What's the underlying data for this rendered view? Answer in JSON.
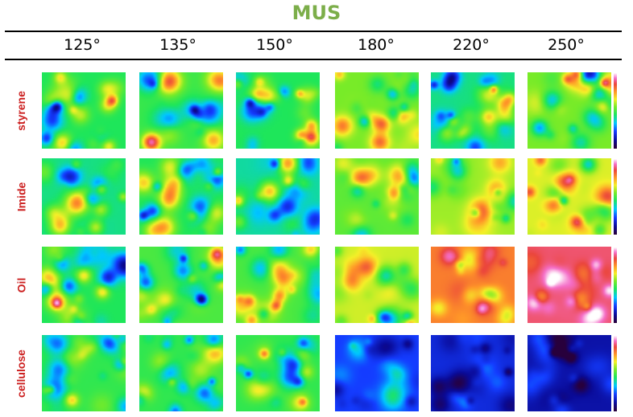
{
  "title": "MUS",
  "colors": {
    "title": "#7cae4a",
    "row_label": "#cc1f1f"
  },
  "columns": [
    "125°",
    "135°",
    "150°",
    "180°",
    "220°",
    "250°"
  ],
  "rows": [
    {
      "label": "styrene",
      "levels": [
        0.45,
        0.48,
        0.45,
        0.55,
        0.42,
        0.55
      ]
    },
    {
      "label": "Imide",
      "levels": [
        0.42,
        0.45,
        0.4,
        0.52,
        0.58,
        0.63
      ]
    },
    {
      "label": "Oil",
      "levels": [
        0.45,
        0.5,
        0.5,
        0.62,
        0.78,
        0.88
      ]
    },
    {
      "label": "cellulose",
      "levels": [
        0.47,
        0.47,
        0.47,
        0.22,
        0.18,
        0.12
      ]
    }
  ]
}
